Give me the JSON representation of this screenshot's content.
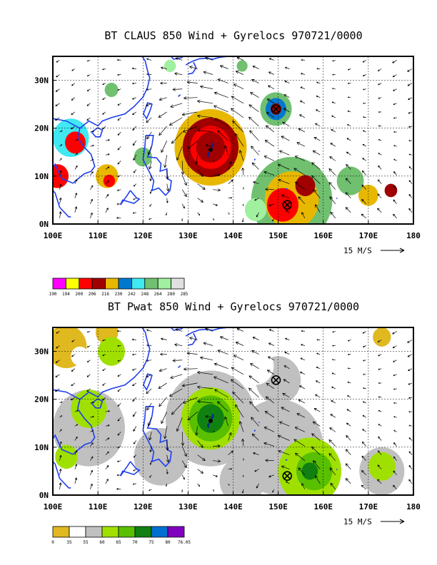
{
  "chart_data": [
    {
      "type": "heatmap",
      "title": "BT CLAUS 850 Wind + Gyrelocs 970721/0000",
      "x_ticks": [
        "100E",
        "110E",
        "120E",
        "130E",
        "140E",
        "150E",
        "160E",
        "170E",
        "180"
      ],
      "y_ticks": [
        "0N",
        "10N",
        "20N",
        "30N"
      ],
      "xlim": [
        100,
        180
      ],
      "ylim": [
        0,
        35
      ],
      "grid": "dashed",
      "wind_reference_label": "15 M/S",
      "colorbar_labels": [
        "190",
        "194",
        "200",
        "206",
        "216",
        "230",
        "242",
        "248",
        "264",
        "280",
        "285"
      ],
      "colors": [
        "#ff00ff",
        "#ffff00",
        "#ff0000",
        "#a00000",
        "#e8b800",
        "#0078d0",
        "#40e8f0",
        "#70c070",
        "#a0f0a0",
        "#e0e0e0"
      ],
      "gyre_locations": [
        {
          "lon": 149.5,
          "lat": 24
        },
        {
          "lon": 152,
          "lat": 4
        }
      ],
      "typhoon_center": {
        "lon": 135,
        "lat": 15.5
      },
      "field_blobs": [
        {
          "lon": 135,
          "lat": 16,
          "r": 8,
          "level": 4
        },
        {
          "lon": 135,
          "lat": 16,
          "r": 6.2,
          "level": 3
        },
        {
          "lon": 135,
          "lat": 16,
          "r": 4.5,
          "level": 2
        },
        {
          "lon": 135,
          "lat": 16,
          "r": 3.2,
          "level": 3
        },
        {
          "lon": 153,
          "lat": 5,
          "r": 9,
          "level": 7
        },
        {
          "lon": 153,
          "lat": 5,
          "r": 6,
          "level": 4
        },
        {
          "lon": 151,
          "lat": 4,
          "r": 3.5,
          "level": 2
        },
        {
          "lon": 156,
          "lat": 8,
          "r": 2.2,
          "level": 3
        },
        {
          "lon": 149.5,
          "lat": 24,
          "r": 3.5,
          "level": 7
        },
        {
          "lon": 149.5,
          "lat": 24,
          "r": 2.3,
          "level": 5
        },
        {
          "lon": 149.5,
          "lat": 24,
          "r": 1.2,
          "level": 3
        },
        {
          "lon": 104,
          "lat": 18,
          "r": 4,
          "level": 6
        },
        {
          "lon": 105,
          "lat": 17,
          "r": 2.3,
          "level": 2
        },
        {
          "lon": 101,
          "lat": 10,
          "r": 2.5,
          "level": 2
        },
        {
          "lon": 112,
          "lat": 10,
          "r": 2.5,
          "level": 4
        },
        {
          "lon": 112.5,
          "lat": 9,
          "r": 1.3,
          "level": 2
        },
        {
          "lon": 170,
          "lat": 6,
          "r": 2.2,
          "level": 4
        },
        {
          "lon": 175,
          "lat": 7,
          "r": 1.4,
          "level": 3
        },
        {
          "lon": 166,
          "lat": 9,
          "r": 3,
          "level": 7
        },
        {
          "lon": 145,
          "lat": 3,
          "r": 2.4,
          "level": 8
        },
        {
          "lon": 120,
          "lat": 14,
          "r": 2,
          "level": 7
        },
        {
          "lon": 113,
          "lat": 28,
          "r": 1.5,
          "level": 7
        },
        {
          "lon": 126,
          "lat": 33,
          "r": 1.3,
          "level": 8
        },
        {
          "lon": 142,
          "lat": 33,
          "r": 1.2,
          "level": 7
        }
      ]
    },
    {
      "type": "heatmap",
      "title": "BT Pwat 850 Wind + Gyrelocs 970721/0000",
      "x_ticks": [
        "100E",
        "110E",
        "120E",
        "130E",
        "140E",
        "150E",
        "160E",
        "170E",
        "180"
      ],
      "y_ticks": [
        "0N",
        "10N",
        "20N",
        "30N"
      ],
      "xlim": [
        100,
        180
      ],
      "ylim": [
        0,
        35
      ],
      "grid": "dashed",
      "wind_reference_label": "15 M/S",
      "colorbar_labels": [
        "0",
        "35",
        "55",
        "60",
        "65",
        "70",
        "75",
        "80",
        "76.05"
      ],
      "colors": [
        "#e0b820",
        "#ffffff",
        "#c0c0c0",
        "#a0e000",
        "#58c000",
        "#108010",
        "#0070d0",
        "#8000c0"
      ],
      "gyre_locations": [
        {
          "lon": 149.5,
          "lat": 24
        },
        {
          "lon": 152,
          "lat": 4
        }
      ],
      "typhoon_center": {
        "lon": 135,
        "lat": 15.5
      },
      "field_blobs": [
        {
          "lon": 103,
          "lat": 31,
          "r": 4.5,
          "level": 0
        },
        {
          "lon": 112,
          "lat": 34,
          "r": 2.5,
          "level": 0
        },
        {
          "lon": 173,
          "lat": 33,
          "r": 2,
          "level": 0
        },
        {
          "lon": 115,
          "lat": 30,
          "r": 2.4,
          "level": 1
        },
        {
          "lon": 106,
          "lat": 29,
          "r": 2,
          "level": 1
        },
        {
          "lon": 135,
          "lat": 16,
          "r": 10,
          "level": 2
        },
        {
          "lon": 150,
          "lat": 10,
          "r": 10,
          "level": 2
        },
        {
          "lon": 108,
          "lat": 14,
          "r": 8,
          "level": 2
        },
        {
          "lon": 124,
          "lat": 8,
          "r": 6,
          "level": 2
        },
        {
          "lon": 150,
          "lat": 24,
          "r": 5,
          "level": 2
        },
        {
          "lon": 173,
          "lat": 5,
          "r": 5,
          "level": 2
        },
        {
          "lon": 142,
          "lat": 3,
          "r": 5,
          "level": 2
        },
        {
          "lon": 135,
          "lat": 16,
          "r": 6.5,
          "level": 3
        },
        {
          "lon": 135,
          "lat": 16,
          "r": 4.8,
          "level": 4
        },
        {
          "lon": 135,
          "lat": 16,
          "r": 3,
          "level": 5
        },
        {
          "lon": 157,
          "lat": 5,
          "r": 7,
          "level": 3
        },
        {
          "lon": 158,
          "lat": 5,
          "r": 4,
          "level": 4
        },
        {
          "lon": 157,
          "lat": 5,
          "r": 1.8,
          "level": 5
        },
        {
          "lon": 108,
          "lat": 18,
          "r": 4,
          "level": 3
        },
        {
          "lon": 113,
          "lat": 30,
          "r": 3,
          "level": 3
        },
        {
          "lon": 173,
          "lat": 6,
          "r": 3,
          "level": 3
        },
        {
          "lon": 103,
          "lat": 8,
          "r": 2.5,
          "level": 3
        }
      ],
      "white_masks": [
        {
          "lon": 120,
          "lat": 22,
          "r": 3.5
        },
        {
          "lon": 145,
          "lat": 27,
          "r": 4
        }
      ]
    }
  ]
}
